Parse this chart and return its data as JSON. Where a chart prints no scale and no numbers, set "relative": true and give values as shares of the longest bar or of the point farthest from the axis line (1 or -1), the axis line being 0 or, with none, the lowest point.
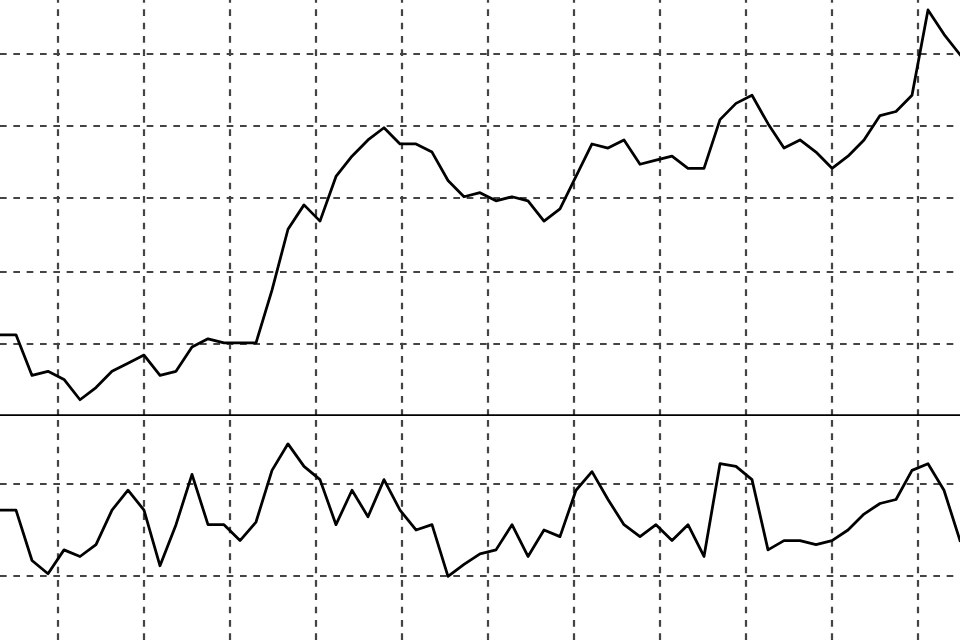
{
  "chart_data": [
    {
      "type": "line",
      "relative": true,
      "grid": true,
      "categories": [
        null,
        null,
        null,
        null,
        null,
        null,
        null,
        null,
        null,
        null,
        null,
        null,
        null,
        null,
        null,
        null,
        null,
        null,
        null,
        null,
        null,
        null,
        null,
        null,
        null,
        null,
        null,
        null,
        null,
        null,
        null,
        null,
        null,
        null,
        null,
        null,
        null,
        null,
        null,
        null,
        null,
        null,
        null,
        null,
        null,
        null,
        null,
        null,
        null,
        null,
        null,
        null,
        null,
        null,
        null,
        null,
        null,
        null,
        null,
        null,
        null
      ],
      "series": [
        {
          "color": "#000000",
          "values": [
            0.2,
            0.2,
            0.1,
            0.11,
            0.09,
            0.04,
            0.07,
            0.11,
            0.13,
            0.15,
            0.1,
            0.11,
            0.17,
            0.19,
            0.18,
            0.18,
            0.18,
            0.31,
            0.46,
            0.52,
            0.48,
            0.59,
            0.64,
            0.68,
            0.71,
            0.67,
            0.67,
            0.65,
            0.58,
            0.54,
            0.55,
            0.53,
            0.54,
            0.53,
            0.48,
            0.51,
            0.59,
            0.67,
            0.66,
            0.68,
            0.62,
            0.63,
            0.64,
            0.61,
            0.61,
            0.73,
            0.77,
            0.79,
            0.72,
            0.66,
            0.68,
            0.65,
            0.61,
            0.64,
            0.68,
            0.74,
            0.75,
            0.79,
            1,
            0.94,
            0.89
          ]
        }
      ]
    },
    {
      "type": "line",
      "relative": true,
      "grid": true,
      "categories": [
        null,
        null,
        null,
        null,
        null,
        null,
        null,
        null,
        null,
        null,
        null,
        null,
        null,
        null,
        null,
        null,
        null,
        null,
        null,
        null,
        null,
        null,
        null,
        null,
        null,
        null,
        null,
        null,
        null,
        null,
        null,
        null,
        null,
        null,
        null,
        null,
        null,
        null,
        null,
        null,
        null,
        null,
        null,
        null,
        null,
        null,
        null,
        null,
        null,
        null,
        null,
        null,
        null,
        null,
        null,
        null,
        null,
        null,
        null,
        null,
        null
      ],
      "series": [
        {
          "color": "#000000",
          "values": [
            0.5,
            0.5,
            0.12,
            0.02,
            0.2,
            0.15,
            0.24,
            0.5,
            0.65,
            0.5,
            0.08,
            0.39,
            0.77,
            0.39,
            0.39,
            0.27,
            0.41,
            0.8,
            1,
            0.83,
            0.73,
            0.39,
            0.65,
            0.45,
            0.73,
            0.5,
            0.35,
            0.39,
            0,
            0.09,
            0.17,
            0.2,
            0.39,
            0.15,
            0.35,
            0.3,
            0.65,
            0.79,
            0.58,
            0.39,
            0.3,
            0.39,
            0.27,
            0.39,
            0.15,
            0.85,
            0.83,
            0.73,
            0.2,
            0.27,
            0.27,
            0.24,
            0.27,
            0.35,
            0.47,
            0.55,
            0.58,
            0.8,
            0.85,
            0.65,
            0.27
          ]
        }
      ]
    }
  ]
}
